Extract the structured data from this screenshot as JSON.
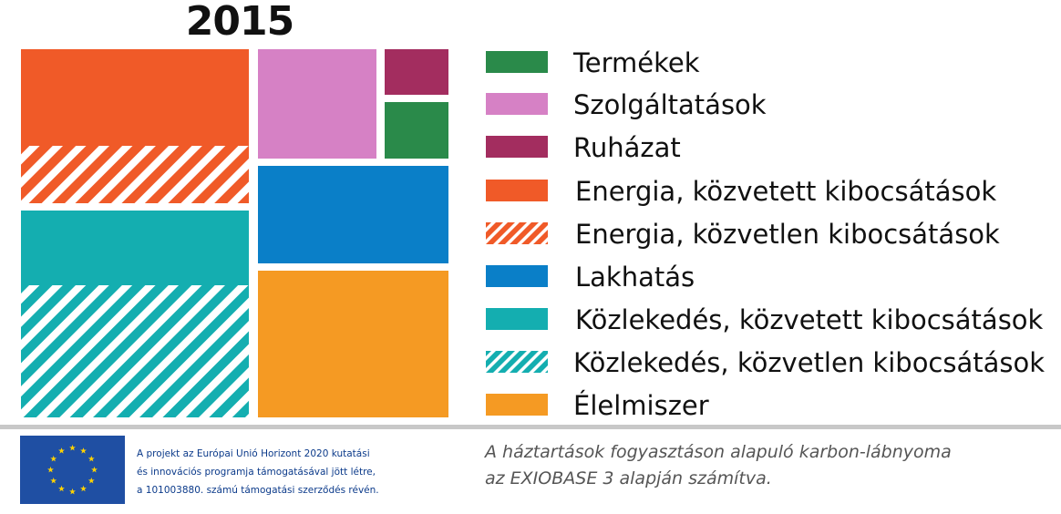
{
  "chart_data": {
    "type": "treemap",
    "title": "2015",
    "colors": {
      "termekek": "#2a8a4a",
      "szolgaltatasok": "#d681c5",
      "ruhazat": "#a32d5f",
      "energia": "#f05a28",
      "lakhatas": "#0a7fc8",
      "kozlekedes": "#14aeb0",
      "elelmiszer": "#f59a23"
    },
    "series": [
      {
        "name": "Termékek",
        "color": "#2a8a4a",
        "pattern": "solid"
      },
      {
        "name": "Szolgáltatások",
        "color": "#d681c5",
        "pattern": "solid"
      },
      {
        "name": "Ruházat",
        "color": "#a32d5f",
        "pattern": "solid"
      },
      {
        "name": "Energia, közvetett kibocsátások",
        "color": "#f05a28",
        "pattern": "solid"
      },
      {
        "name": "Energia, közvetlen kibocsátások",
        "color": "#f05a28",
        "pattern": "hatched"
      },
      {
        "name": "Lakhatás",
        "color": "#0a7fc8",
        "pattern": "solid"
      },
      {
        "name": "Közlekedés, közvetett kibocsátások",
        "color": "#14aeb0",
        "pattern": "solid"
      },
      {
        "name": "Közlekedés, közvetlen kibocsátások",
        "color": "#14aeb0",
        "pattern": "hatched"
      },
      {
        "name": "Élelmiszer",
        "color": "#f59a23",
        "pattern": "solid"
      }
    ],
    "values": [
      2.4,
      5.3,
      1.8,
      11.4,
      6.8,
      9.1,
      8.8,
      15.6,
      17.0
    ],
    "legend_position": "right"
  },
  "footer": {
    "funding_lines": [
      "A projekt az Európai Unió Horizont 2020 kutatási",
      "és innovációs programja támogatásával jött létre,",
      "a 101003880. számú támogatási szerződés révén."
    ],
    "caption_lines": [
      "A háztartások fogyasztáson alapuló karbon-lábnyoma",
      "az EXIOBASE 3 alapján számítva."
    ],
    "flag_colors": {
      "background": "#1f4fa3",
      "stars": "#ffd200"
    }
  }
}
